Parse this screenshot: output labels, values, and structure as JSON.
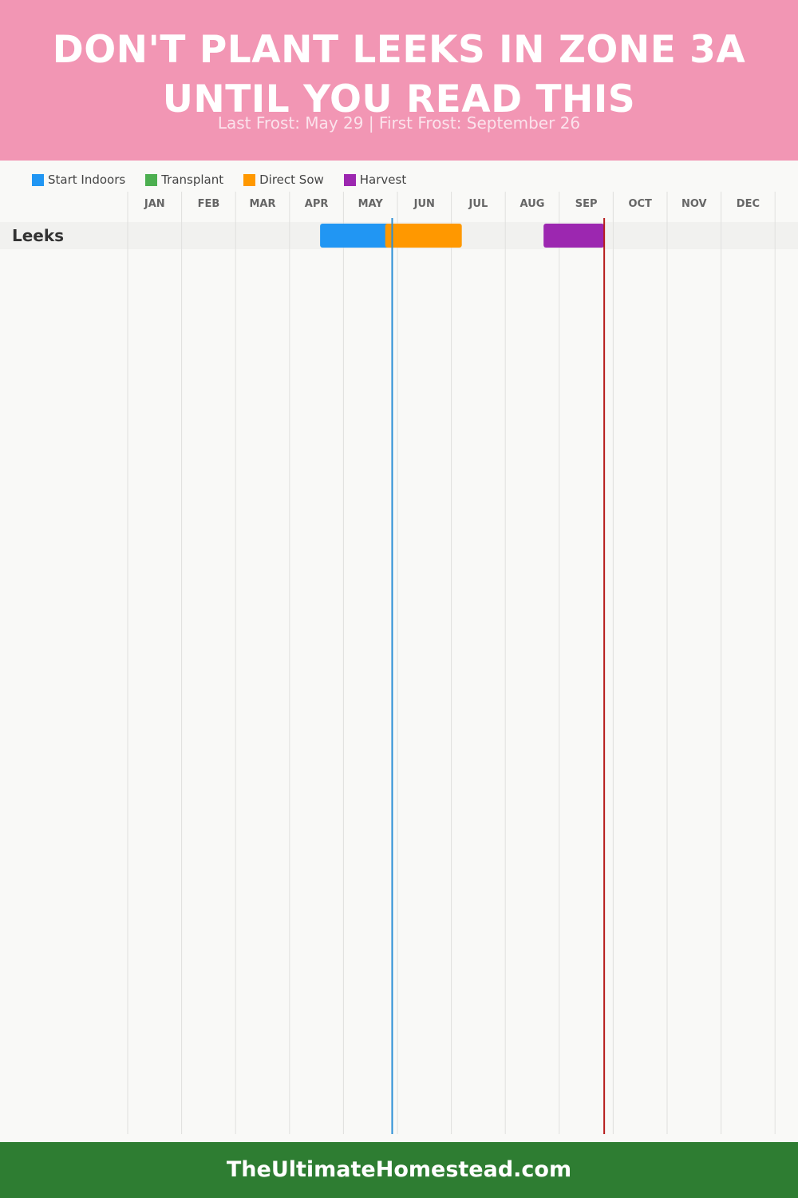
{
  "header": {
    "title_line1": "DON'T PLANT LEEKS IN ZONE 3A",
    "title_line2": "UNTIL YOU READ THIS",
    "subtitle": "Last Frost: May 29 | First Frost: September 26",
    "background": "#f296b4"
  },
  "legend": [
    {
      "label": "Start Indoors",
      "color": "#2196f3"
    },
    {
      "label": "Transplant",
      "color": "#4caf50"
    },
    {
      "label": "Direct Sow",
      "color": "#ff9800"
    },
    {
      "label": "Harvest",
      "color": "#9c27b0"
    }
  ],
  "chart_data": {
    "type": "gantt",
    "months": [
      "JAN",
      "FEB",
      "MAR",
      "APR",
      "MAY",
      "JUN",
      "JUL",
      "AUG",
      "SEP",
      "OCT",
      "NOV",
      "DEC"
    ],
    "rows": [
      {
        "crop": "Leeks",
        "periods": [
          {
            "phase": "Start Indoors",
            "start": "Apr 18",
            "end": "May 29",
            "color": "#2196f3"
          },
          {
            "phase": "Direct Sow",
            "start": "May 25",
            "end": "Jul 7",
            "color": "#ff9800"
          },
          {
            "phase": "Harvest",
            "start": "Aug 23",
            "end": "Sep 26",
            "color": "#9c27b0"
          }
        ]
      }
    ],
    "markers": [
      {
        "label": "Last Frost",
        "date": "May 29",
        "color": "#2b8fd6"
      },
      {
        "label": "First Frost",
        "date": "Sep 26",
        "color": "#b71c1c"
      }
    ]
  },
  "footer": {
    "text": "TheUltimateHomestead.com",
    "background": "#2e7d32"
  }
}
